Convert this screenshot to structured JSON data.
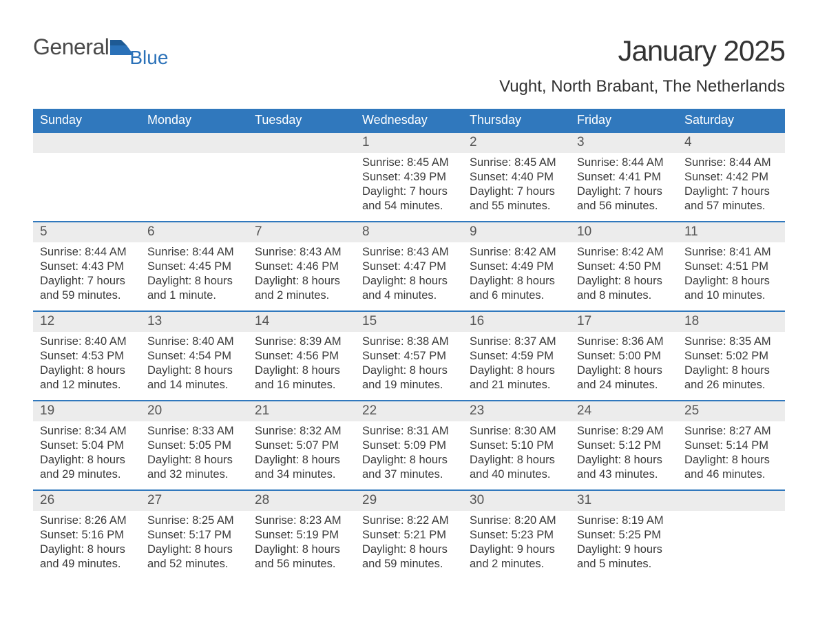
{
  "logo": {
    "general": "General",
    "blue": "Blue",
    "flag_color": "#2a71b8"
  },
  "title": "January 2025",
  "location": "Vught, North Brabant, The Netherlands",
  "colors": {
    "header_bg": "#3078bd",
    "header_text": "#ffffff",
    "daynum_bg": "#ececec",
    "week_border": "#3078bd",
    "body_text": "#3a3a3a",
    "title_text": "#333333"
  },
  "weekdays": [
    "Sunday",
    "Monday",
    "Tuesday",
    "Wednesday",
    "Thursday",
    "Friday",
    "Saturday"
  ],
  "labels": {
    "sunrise": "Sunrise:",
    "sunset": "Sunset:",
    "daylight": "Daylight:"
  },
  "weeks": [
    [
      {
        "blank": true
      },
      {
        "blank": true
      },
      {
        "blank": true
      },
      {
        "num": "1",
        "sunrise": "8:45 AM",
        "sunset": "4:39 PM",
        "daylight": "7 hours and 54 minutes."
      },
      {
        "num": "2",
        "sunrise": "8:45 AM",
        "sunset": "4:40 PM",
        "daylight": "7 hours and 55 minutes."
      },
      {
        "num": "3",
        "sunrise": "8:44 AM",
        "sunset": "4:41 PM",
        "daylight": "7 hours and 56 minutes."
      },
      {
        "num": "4",
        "sunrise": "8:44 AM",
        "sunset": "4:42 PM",
        "daylight": "7 hours and 57 minutes."
      }
    ],
    [
      {
        "num": "5",
        "sunrise": "8:44 AM",
        "sunset": "4:43 PM",
        "daylight": "7 hours and 59 minutes."
      },
      {
        "num": "6",
        "sunrise": "8:44 AM",
        "sunset": "4:45 PM",
        "daylight": "8 hours and 1 minute."
      },
      {
        "num": "7",
        "sunrise": "8:43 AM",
        "sunset": "4:46 PM",
        "daylight": "8 hours and 2 minutes."
      },
      {
        "num": "8",
        "sunrise": "8:43 AM",
        "sunset": "4:47 PM",
        "daylight": "8 hours and 4 minutes."
      },
      {
        "num": "9",
        "sunrise": "8:42 AM",
        "sunset": "4:49 PM",
        "daylight": "8 hours and 6 minutes."
      },
      {
        "num": "10",
        "sunrise": "8:42 AM",
        "sunset": "4:50 PM",
        "daylight": "8 hours and 8 minutes."
      },
      {
        "num": "11",
        "sunrise": "8:41 AM",
        "sunset": "4:51 PM",
        "daylight": "8 hours and 10 minutes."
      }
    ],
    [
      {
        "num": "12",
        "sunrise": "8:40 AM",
        "sunset": "4:53 PM",
        "daylight": "8 hours and 12 minutes."
      },
      {
        "num": "13",
        "sunrise": "8:40 AM",
        "sunset": "4:54 PM",
        "daylight": "8 hours and 14 minutes."
      },
      {
        "num": "14",
        "sunrise": "8:39 AM",
        "sunset": "4:56 PM",
        "daylight": "8 hours and 16 minutes."
      },
      {
        "num": "15",
        "sunrise": "8:38 AM",
        "sunset": "4:57 PM",
        "daylight": "8 hours and 19 minutes."
      },
      {
        "num": "16",
        "sunrise": "8:37 AM",
        "sunset": "4:59 PM",
        "daylight": "8 hours and 21 minutes."
      },
      {
        "num": "17",
        "sunrise": "8:36 AM",
        "sunset": "5:00 PM",
        "daylight": "8 hours and 24 minutes."
      },
      {
        "num": "18",
        "sunrise": "8:35 AM",
        "sunset": "5:02 PM",
        "daylight": "8 hours and 26 minutes."
      }
    ],
    [
      {
        "num": "19",
        "sunrise": "8:34 AM",
        "sunset": "5:04 PM",
        "daylight": "8 hours and 29 minutes."
      },
      {
        "num": "20",
        "sunrise": "8:33 AM",
        "sunset": "5:05 PM",
        "daylight": "8 hours and 32 minutes."
      },
      {
        "num": "21",
        "sunrise": "8:32 AM",
        "sunset": "5:07 PM",
        "daylight": "8 hours and 34 minutes."
      },
      {
        "num": "22",
        "sunrise": "8:31 AM",
        "sunset": "5:09 PM",
        "daylight": "8 hours and 37 minutes."
      },
      {
        "num": "23",
        "sunrise": "8:30 AM",
        "sunset": "5:10 PM",
        "daylight": "8 hours and 40 minutes."
      },
      {
        "num": "24",
        "sunrise": "8:29 AM",
        "sunset": "5:12 PM",
        "daylight": "8 hours and 43 minutes."
      },
      {
        "num": "25",
        "sunrise": "8:27 AM",
        "sunset": "5:14 PM",
        "daylight": "8 hours and 46 minutes."
      }
    ],
    [
      {
        "num": "26",
        "sunrise": "8:26 AM",
        "sunset": "5:16 PM",
        "daylight": "8 hours and 49 minutes."
      },
      {
        "num": "27",
        "sunrise": "8:25 AM",
        "sunset": "5:17 PM",
        "daylight": "8 hours and 52 minutes."
      },
      {
        "num": "28",
        "sunrise": "8:23 AM",
        "sunset": "5:19 PM",
        "daylight": "8 hours and 56 minutes."
      },
      {
        "num": "29",
        "sunrise": "8:22 AM",
        "sunset": "5:21 PM",
        "daylight": "8 hours and 59 minutes."
      },
      {
        "num": "30",
        "sunrise": "8:20 AM",
        "sunset": "5:23 PM",
        "daylight": "9 hours and 2 minutes."
      },
      {
        "num": "31",
        "sunrise": "8:19 AM",
        "sunset": "5:25 PM",
        "daylight": "9 hours and 5 minutes."
      },
      {
        "blank": true
      }
    ]
  ]
}
